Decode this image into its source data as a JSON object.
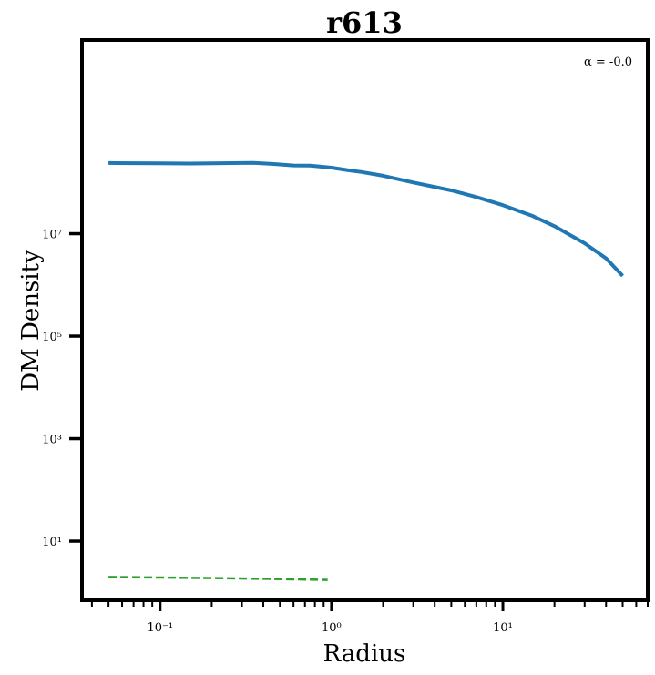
{
  "chart_data": {
    "type": "line",
    "title": "r613",
    "xlabel": "Radius",
    "ylabel": "DM Density",
    "xscale": "log",
    "yscale": "log",
    "xlim": [
      0.035,
      70
    ],
    "ylim": [
      0.7,
      60000000000
    ],
    "grid": false,
    "annotation": "α = -0.0",
    "annotation_position": "top-right",
    "x_ticks": [
      {
        "value": 0.1,
        "label": "10⁻¹"
      },
      {
        "value": 1,
        "label": "10⁰"
      },
      {
        "value": 10,
        "label": "10¹"
      }
    ],
    "y_ticks": [
      {
        "value": 10,
        "label": "10¹"
      },
      {
        "value": 1000,
        "label": "10³"
      },
      {
        "value": 100000,
        "label": "10⁵"
      },
      {
        "value": 10000000,
        "label": "10⁷"
      }
    ],
    "series": [
      {
        "color": "#1f77b4",
        "style": "solid",
        "points": [
          [
            0.05,
            240000000
          ],
          [
            0.07,
            238000000
          ],
          [
            0.1,
            236000000
          ],
          [
            0.15,
            234000000
          ],
          [
            0.2,
            236000000
          ],
          [
            0.3,
            240000000
          ],
          [
            0.35,
            242000000
          ],
          [
            0.45,
            230000000
          ],
          [
            0.6,
            215000000
          ],
          [
            0.75,
            213000000
          ],
          [
            1.0,
            195000000
          ],
          [
            1.3,
            170000000
          ],
          [
            1.5,
            160000000
          ],
          [
            2.0,
            135000000
          ],
          [
            3.0,
            100000000
          ],
          [
            5.0,
            70000000
          ],
          [
            7.0,
            52000000
          ],
          [
            10.0,
            36000000
          ],
          [
            15.0,
            22000000
          ],
          [
            20.0,
            14000000
          ],
          [
            30.0,
            6500000
          ],
          [
            40.0,
            3300000
          ],
          [
            50.0,
            1500000
          ]
        ]
      },
      {
        "color": "#2ca02c",
        "style": "dashed",
        "points": [
          [
            0.05,
            2.0
          ],
          [
            0.1,
            1.95
          ],
          [
            0.2,
            1.9
          ],
          [
            0.5,
            1.82
          ],
          [
            0.95,
            1.75
          ]
        ]
      }
    ]
  }
}
